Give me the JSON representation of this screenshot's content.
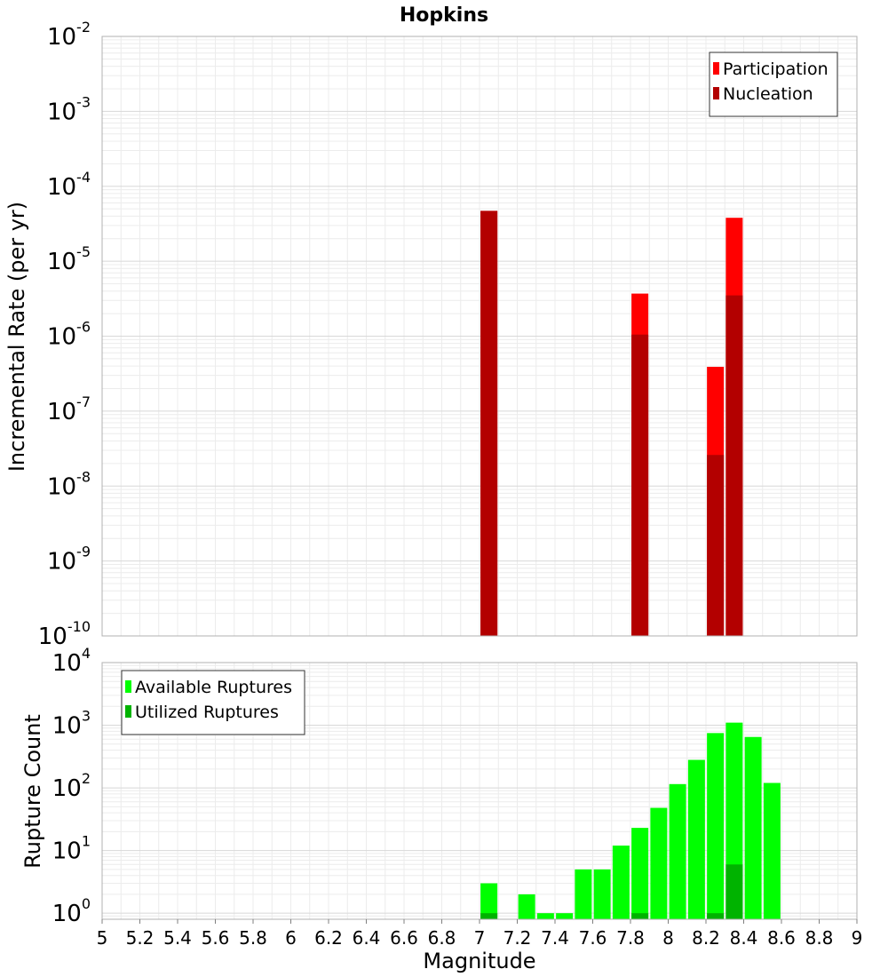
{
  "chart_data": [
    {
      "type": "bar",
      "title": "Hopkins",
      "xlabel": "Magnitude",
      "ylabel": "Incremental Rate (per yr)",
      "yscale": "log",
      "ylim": [
        1e-10,
        0.01
      ],
      "xlim": [
        5,
        9
      ],
      "grid": true,
      "legend_position": "top-right",
      "y_ticks": [
        {
          "base": "10",
          "exp": "-10"
        },
        {
          "base": "10",
          "exp": "-9"
        },
        {
          "base": "10",
          "exp": "-8"
        },
        {
          "base": "10",
          "exp": "-7"
        },
        {
          "base": "10",
          "exp": "-6"
        },
        {
          "base": "10",
          "exp": "-5"
        },
        {
          "base": "10",
          "exp": "-4"
        },
        {
          "base": "10",
          "exp": "-3"
        },
        {
          "base": "10",
          "exp": "-2"
        }
      ],
      "series": [
        {
          "name": "Participation",
          "color": "#ff0000",
          "points": [
            [
              7.05,
              4.7e-05
            ],
            [
              7.85,
              3.7e-06
            ],
            [
              8.25,
              3.9e-07
            ],
            [
              8.35,
              3.8e-05
            ]
          ]
        },
        {
          "name": "Nucleation",
          "color": "#b30000",
          "points": [
            [
              7.05,
              4.7e-05
            ],
            [
              7.85,
              1.05e-06
            ],
            [
              8.25,
              2.6e-08
            ],
            [
              8.35,
              3.5e-06
            ]
          ]
        }
      ]
    },
    {
      "type": "bar",
      "ylabel": "Rupture Count",
      "xlabel": "Magnitude",
      "yscale": "log",
      "ylim": [
        0.8,
        10000
      ],
      "xlim": [
        5,
        9
      ],
      "grid": true,
      "legend_position": "top-left",
      "y_ticks": [
        {
          "base": "10",
          "exp": "0",
          "value": 1
        },
        {
          "base": "10",
          "exp": "1",
          "value": 10
        },
        {
          "base": "10",
          "exp": "2",
          "value": 100
        },
        {
          "base": "10",
          "exp": "3",
          "value": 1000
        },
        {
          "base": "10",
          "exp": "4",
          "value": 10000
        }
      ],
      "x_ticks": [
        "5",
        "5.2",
        "5.4",
        "5.6",
        "5.8",
        "6",
        "6.2",
        "6.4",
        "6.6",
        "6.8",
        "7",
        "7.2",
        "7.4",
        "7.6",
        "7.8",
        "8",
        "8.2",
        "8.4",
        "8.6",
        "8.8",
        "9"
      ],
      "series": [
        {
          "name": "Available Ruptures",
          "color": "#00ff00",
          "points": [
            [
              7.05,
              3
            ],
            [
              7.25,
              2
            ],
            [
              7.35,
              1
            ],
            [
              7.45,
              1
            ],
            [
              7.55,
              5
            ],
            [
              7.65,
              5
            ],
            [
              7.75,
              12
            ],
            [
              7.85,
              23
            ],
            [
              7.95,
              48
            ],
            [
              8.05,
              115
            ],
            [
              8.15,
              280
            ],
            [
              8.25,
              750
            ],
            [
              8.35,
              1100
            ],
            [
              8.45,
              650
            ],
            [
              8.55,
              120
            ]
          ]
        },
        {
          "name": "Utilized Ruptures",
          "color": "#00b300",
          "points": [
            [
              7.05,
              1
            ],
            [
              7.85,
              1
            ],
            [
              8.25,
              1
            ],
            [
              8.35,
              6
            ]
          ]
        }
      ]
    }
  ]
}
